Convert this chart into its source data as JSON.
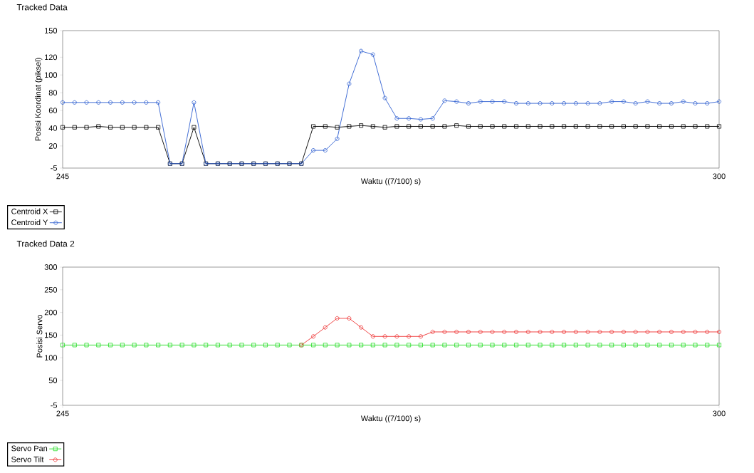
{
  "chart_data": [
    {
      "type": "line",
      "title": "Tracked Data",
      "xlabel": "Waktu ((7/100) s)",
      "ylabel": "Posisi Koordinat (piksel)",
      "x": [
        245,
        246,
        247,
        248,
        249,
        250,
        251,
        252,
        253,
        254,
        255,
        256,
        257,
        258,
        259,
        260,
        261,
        262,
        263,
        264,
        265,
        266,
        267,
        268,
        269,
        270,
        271,
        272,
        273,
        274,
        275,
        276,
        277,
        278,
        279,
        280,
        281,
        282,
        283,
        284,
        285,
        286,
        287,
        288,
        289,
        290,
        291,
        292,
        293,
        294,
        295,
        296,
        297,
        298,
        299,
        300
      ],
      "series": [
        {
          "name": "Centroid X",
          "color": "#000000",
          "marker": "square",
          "values": [
            41,
            41,
            41,
            42,
            41,
            41,
            41,
            41,
            41,
            0,
            0,
            41,
            0,
            0,
            0,
            0,
            0,
            0,
            0,
            0,
            0,
            42,
            42,
            41,
            42,
            43,
            42,
            41,
            42,
            42,
            42,
            42,
            42,
            43,
            42,
            42,
            42,
            42,
            42,
            42,
            42,
            42,
            42,
            42,
            42,
            42,
            42,
            42,
            42,
            42,
            42,
            42,
            42,
            42,
            42,
            42
          ]
        },
        {
          "name": "Centroid Y",
          "color": "#2f5fd0",
          "marker": "circle",
          "values": [
            69,
            69,
            69,
            69,
            69,
            69,
            69,
            69,
            69,
            0,
            0,
            69,
            0,
            0,
            0,
            0,
            0,
            0,
            0,
            0,
            0,
            15,
            15,
            28,
            90,
            127,
            123,
            74,
            51,
            51,
            50,
            51,
            71,
            70,
            68,
            70,
            70,
            70,
            68,
            68,
            68,
            68,
            68,
            68,
            68,
            68,
            70,
            70,
            68,
            70,
            68,
            68,
            70,
            68,
            68,
            70
          ]
        }
      ],
      "xlim": [
        245,
        300
      ],
      "ylim": [
        -5,
        150
      ],
      "xticks": [
        245,
        300
      ],
      "yticks": [
        -5,
        20,
        40,
        60,
        80,
        100,
        120,
        150
      ],
      "legend": "bottom left"
    },
    {
      "type": "line",
      "title": "Tracked Data 2",
      "xlabel": "Waktu ((7/100) s)",
      "ylabel": "Posisi Servo",
      "x": [
        245,
        246,
        247,
        248,
        249,
        250,
        251,
        252,
        253,
        254,
        255,
        256,
        257,
        258,
        259,
        260,
        261,
        262,
        263,
        264,
        265,
        266,
        267,
        268,
        269,
        270,
        271,
        272,
        273,
        274,
        275,
        276,
        277,
        278,
        279,
        280,
        281,
        282,
        283,
        284,
        285,
        286,
        287,
        288,
        289,
        290,
        291,
        292,
        293,
        294,
        295,
        296,
        297,
        298,
        299,
        300
      ],
      "series": [
        {
          "name": "Servo Pan",
          "color": "#22dd22",
          "marker": "square",
          "values": [
            128,
            128,
            128,
            128,
            128,
            128,
            128,
            128,
            128,
            128,
            128,
            128,
            128,
            128,
            128,
            128,
            128,
            128,
            128,
            128,
            128,
            128,
            128,
            128,
            128,
            128,
            128,
            128,
            128,
            128,
            128,
            128,
            128,
            128,
            128,
            128,
            128,
            128,
            128,
            128,
            128,
            128,
            128,
            128,
            128,
            128,
            128,
            128,
            128,
            128,
            128,
            128,
            128,
            128,
            128,
            128
          ]
        },
        {
          "name": "Servo Tilt",
          "color": "#ee3333",
          "marker": "circle",
          "values": [
            null,
            null,
            null,
            null,
            null,
            null,
            null,
            null,
            null,
            null,
            null,
            null,
            null,
            null,
            null,
            null,
            null,
            null,
            null,
            null,
            128,
            147,
            167,
            187,
            187,
            167,
            147,
            147,
            147,
            147,
            147,
            157,
            157,
            157,
            157,
            157,
            157,
            157,
            157,
            157,
            157,
            157,
            157,
            157,
            157,
            157,
            157,
            157,
            157,
            157,
            157,
            157,
            157,
            157,
            157,
            157
          ]
        }
      ],
      "xlim": [
        245,
        300
      ],
      "ylim": [
        -5,
        300
      ],
      "xticks": [
        245,
        300
      ],
      "yticks": [
        -5,
        50,
        100,
        150,
        200,
        250,
        300
      ],
      "legend": "bottom left"
    }
  ]
}
